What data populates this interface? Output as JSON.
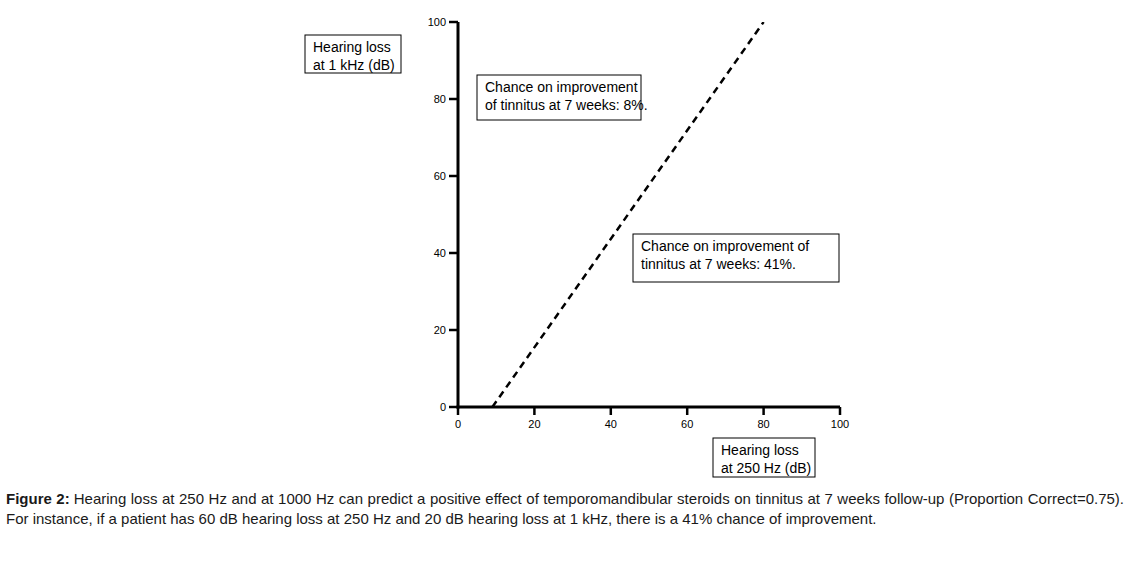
{
  "chart_data": {
    "type": "line",
    "x": [
      9,
      80
    ],
    "values": [
      0,
      100
    ],
    "color": "#000000",
    "line_style": "dashed",
    "xlim": [
      0,
      100
    ],
    "ylim": [
      0,
      100
    ],
    "xticks": [
      0,
      20,
      40,
      60,
      80,
      100
    ],
    "yticks": [
      0,
      20,
      40,
      60,
      80,
      100
    ],
    "grid": false,
    "xlabel": [
      "Hearing loss",
      "at 250 Hz (dB)"
    ],
    "ylabel": [
      "Hearing loss",
      "at 1 kHz (dB)"
    ],
    "annotations": [
      {
        "text": [
          "Chance on improvement",
          "of tinnitus at 7 weeks: 8%."
        ]
      },
      {
        "text": [
          "Chance on improvement of",
          "tinnitus at 7 weeks: 41%."
        ]
      }
    ]
  },
  "caption": {
    "label": "Figure 2:",
    "text": "Hearing loss at 250 Hz and at 1000 Hz can predict a positive effect of temporomandibular steroids on tinnitus at 7 weeks follow-up (Proportion Correct=0.75). For instance, if a patient has 60 dB hearing loss at 250 Hz and 20 dB hearing loss at 1 kHz, there is a 41% chance of improvement."
  }
}
